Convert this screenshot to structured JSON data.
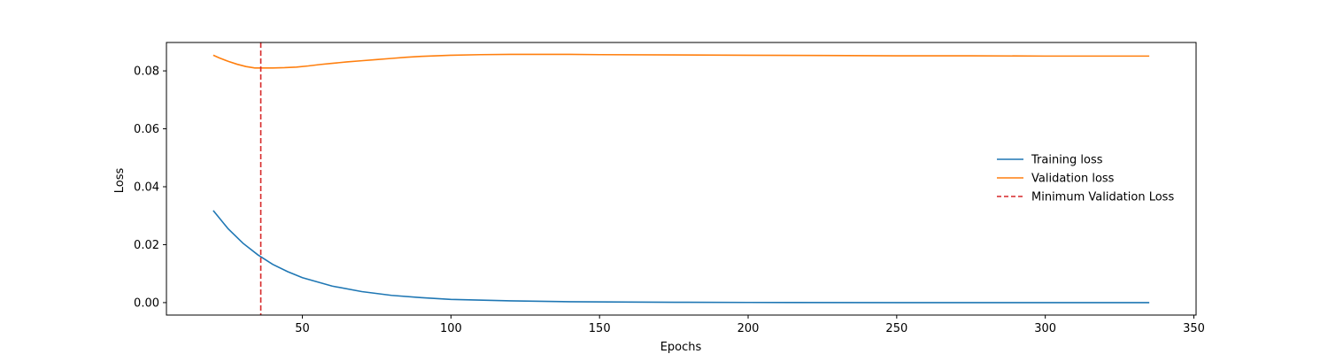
{
  "chart_data": {
    "type": "line",
    "title": "",
    "xlabel": "Epochs",
    "ylabel": "Loss",
    "xlim": [
      4.25,
      350.75
    ],
    "ylim": [
      -0.0043,
      0.0898
    ],
    "x_ticks": [
      50,
      100,
      150,
      200,
      250,
      300,
      350
    ],
    "y_ticks": [
      0.0,
      0.02,
      0.04,
      0.06,
      0.08
    ],
    "y_tick_labels": [
      "0.00",
      "0.02",
      "0.04",
      "0.06",
      "0.08"
    ],
    "grid": false,
    "legend_position": "center-right",
    "series": [
      {
        "name": "Training loss",
        "color": "#1f77b4",
        "style": "solid",
        "x": [
          20,
          25,
          30,
          35,
          40,
          45,
          50,
          60,
          70,
          80,
          90,
          100,
          120,
          140,
          160,
          180,
          200,
          250,
          300,
          335
        ],
        "y": [
          0.0318,
          0.0255,
          0.0205,
          0.0165,
          0.0132,
          0.0107,
          0.0086,
          0.0057,
          0.0038,
          0.0025,
          0.0017,
          0.0011,
          0.0006,
          0.0003,
          0.0002,
          0.0001,
          5e-05,
          0.0,
          0.0,
          0.0
        ]
      },
      {
        "name": "Validation loss",
        "color": "#ff7f0e",
        "style": "solid",
        "x": [
          20,
          22,
          25,
          28,
          31,
          34,
          36,
          40,
          44,
          48,
          52,
          56,
          60,
          65,
          70,
          75,
          80,
          85,
          90,
          95,
          100,
          110,
          120,
          130,
          140,
          150,
          175,
          200,
          225,
          250,
          275,
          300,
          335
        ],
        "y": [
          0.0854,
          0.0845,
          0.0833,
          0.0823,
          0.0815,
          0.081,
          0.081,
          0.081,
          0.0811,
          0.0813,
          0.0817,
          0.0822,
          0.0826,
          0.0831,
          0.0835,
          0.0839,
          0.0843,
          0.0847,
          0.085,
          0.0852,
          0.0854,
          0.0856,
          0.0857,
          0.0857,
          0.0857,
          0.0856,
          0.0855,
          0.0854,
          0.0853,
          0.0852,
          0.0852,
          0.0851,
          0.0851
        ]
      },
      {
        "name": "Minimum Validation Loss",
        "color": "#d62728",
        "style": "dashed",
        "vline_x": 36
      }
    ]
  }
}
